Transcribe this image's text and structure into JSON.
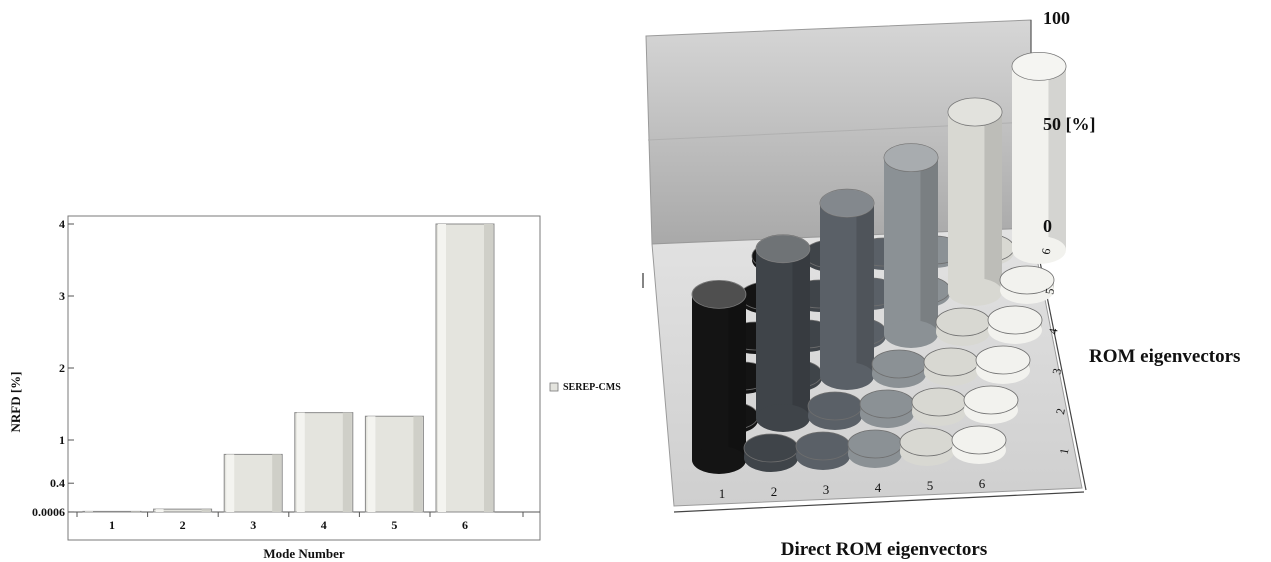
{
  "chart_data": [
    {
      "type": "bar",
      "categories": [
        "1",
        "2",
        "3",
        "4",
        "5",
        "6"
      ],
      "values": [
        0.0006,
        0.04,
        0.8,
        1.38,
        1.33,
        4.0
      ],
      "ytick_labels": [
        "0.0006",
        "0.4",
        "1",
        "2",
        "3",
        "4"
      ],
      "ylim": [
        0,
        4.1
      ],
      "xlabel": "Mode Number",
      "ylabel": "NRFD [%]",
      "series": [
        {
          "name": "SEREP-CMS",
          "color": "#e4e4de"
        }
      ],
      "legend_position": "right",
      "grid": false
    },
    {
      "type": "bar3d",
      "x_categories": [
        "1",
        "2",
        "3",
        "4",
        "5",
        "6"
      ],
      "y_categories": [
        "1",
        "2",
        "3",
        "4",
        "5",
        "6"
      ],
      "diagonal_values": [
        100,
        100,
        100,
        100,
        100,
        100
      ],
      "off_diagonal_shown": "low discs",
      "zlim": [
        0,
        100
      ],
      "ztick_labels": [
        "0",
        "50 [%]",
        "100"
      ],
      "xlabel": "Direct ROM eigenvectors",
      "ylabel": "ROM eigenvectors",
      "column_colors": [
        "#141414",
        "#3f4449",
        "#5a6067",
        "#8b9195",
        "#d8d8d2",
        "#f2f2ee"
      ]
    }
  ]
}
